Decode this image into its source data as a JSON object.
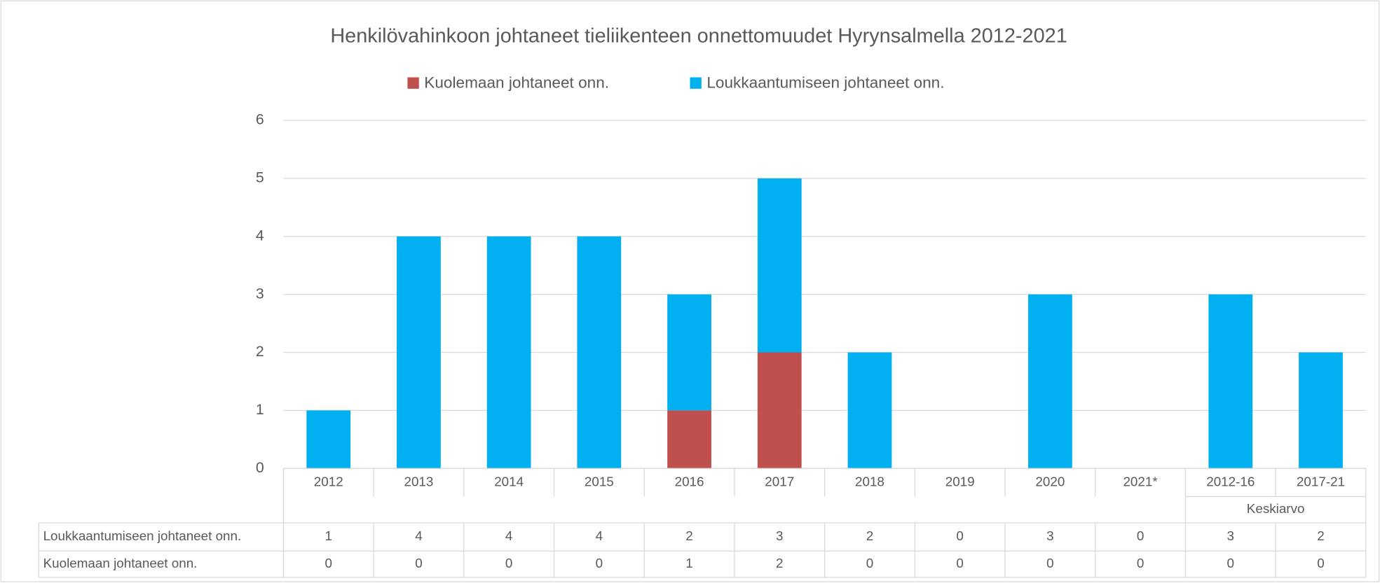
{
  "chart_data": {
    "type": "stacked_bar",
    "title": "Henkilövahinkoon johtaneet tieliikenteen onnettomuudet Hyrynsalmella 2012-2021",
    "categories": [
      "2012",
      "2013",
      "2014",
      "2015",
      "2016",
      "2017",
      "2018",
      "2019",
      "2020",
      "2021*",
      "2012-16",
      "2017-21"
    ],
    "category_group_label": "Keskiarvo",
    "series": [
      {
        "name": "Kuolemaan johtaneet onn.",
        "color": "#c0504d",
        "values": [
          0,
          0,
          0,
          0,
          1,
          2,
          0,
          0,
          0,
          0,
          0,
          0
        ]
      },
      {
        "name": "Loukkaantumiseen johtaneet onn.",
        "color": "#00b0f0",
        "values": [
          1,
          4,
          4,
          4,
          2,
          3,
          2,
          0,
          3,
          0,
          3,
          2
        ]
      }
    ],
    "ylim": [
      0,
      6
    ],
    "yticks": [
      0,
      1,
      2,
      3,
      4,
      5,
      6
    ],
    "grid": true,
    "legend": "top",
    "data_table": true
  }
}
